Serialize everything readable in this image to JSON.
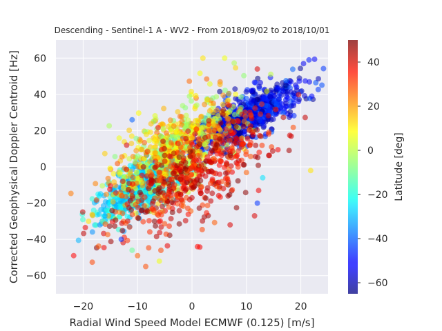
{
  "chart_data": {
    "type": "scatter",
    "title": "Descending - Sentinel-1 A - WV2 - From 2018/09/02 to 2018/10/01",
    "xlabel": "Radial Wind Speed Model ECMWF (0.125) [m/s]",
    "ylabel": "Corrected Geophysical Doppler Centroid [Hz]",
    "xlim": [
      -25,
      25
    ],
    "ylim": [
      -70,
      70
    ],
    "x_ticks": [
      -20,
      -10,
      0,
      10,
      20
    ],
    "y_ticks": [
      -60,
      -40,
      -20,
      0,
      20,
      40,
      60
    ],
    "grid": true,
    "colorbar": {
      "label": "Latitude [deg]",
      "range": [
        -65,
        50
      ],
      "ticks": [
        -60,
        -40,
        -20,
        0,
        20,
        40
      ],
      "colormap": "jet"
    },
    "clusters": [
      {
        "lat_range": [
          -65,
          -40
        ],
        "x_center": 10,
        "y_center": 28,
        "x_spread": 5,
        "y_spread": 11
      },
      {
        "lat_range": [
          -35,
          -15
        ],
        "x_center": -9,
        "y_center": -10,
        "x_spread": 4,
        "y_spread": 12
      },
      {
        "lat_range": [
          -10,
          25
        ],
        "x_center": -3,
        "y_center": 10,
        "x_spread": 6,
        "y_spread": 20
      },
      {
        "lat_range": [
          25,
          50
        ],
        "x_center": 0,
        "y_center": -5,
        "x_spread": 7,
        "y_spread": 22
      }
    ],
    "points": [
      {
        "x": 21.8,
        "y": -2,
        "lat": 10
      },
      {
        "x": 20.5,
        "y": 57,
        "lat": -52
      },
      {
        "x": 21.5,
        "y": 59,
        "lat": -48
      },
      {
        "x": 22,
        "y": 39,
        "lat": -50
      },
      {
        "x": 12,
        "y": -20,
        "lat": -45
      },
      {
        "x": 11.5,
        "y": -27,
        "lat": 40
      },
      {
        "x": 13,
        "y": -6,
        "lat": -25
      },
      {
        "x": -17,
        "y": -16,
        "lat": -25
      },
      {
        "x": -19,
        "y": -30,
        "lat": 10
      },
      {
        "x": -10,
        "y": -49,
        "lat": 25
      },
      {
        "x": -6,
        "y": -52,
        "lat": 5
      },
      {
        "x": 2,
        "y": 60,
        "lat": 10
      },
      {
        "x": 6,
        "y": 60,
        "lat": 5
      },
      {
        "x": -11,
        "y": 26,
        "lat": -40
      },
      {
        "x": -12,
        "y": 12,
        "lat": 40
      },
      {
        "x": 7,
        "y": -32,
        "lat": 40
      },
      {
        "x": 12,
        "y": 54,
        "lat": 40
      },
      {
        "x": -16,
        "y": -27,
        "lat": -30
      },
      {
        "x": -13,
        "y": -40,
        "lat": -45
      },
      {
        "x": 1,
        "y": -44,
        "lat": 35
      },
      {
        "x": -11,
        "y": -46,
        "lat": -10
      }
    ]
  }
}
